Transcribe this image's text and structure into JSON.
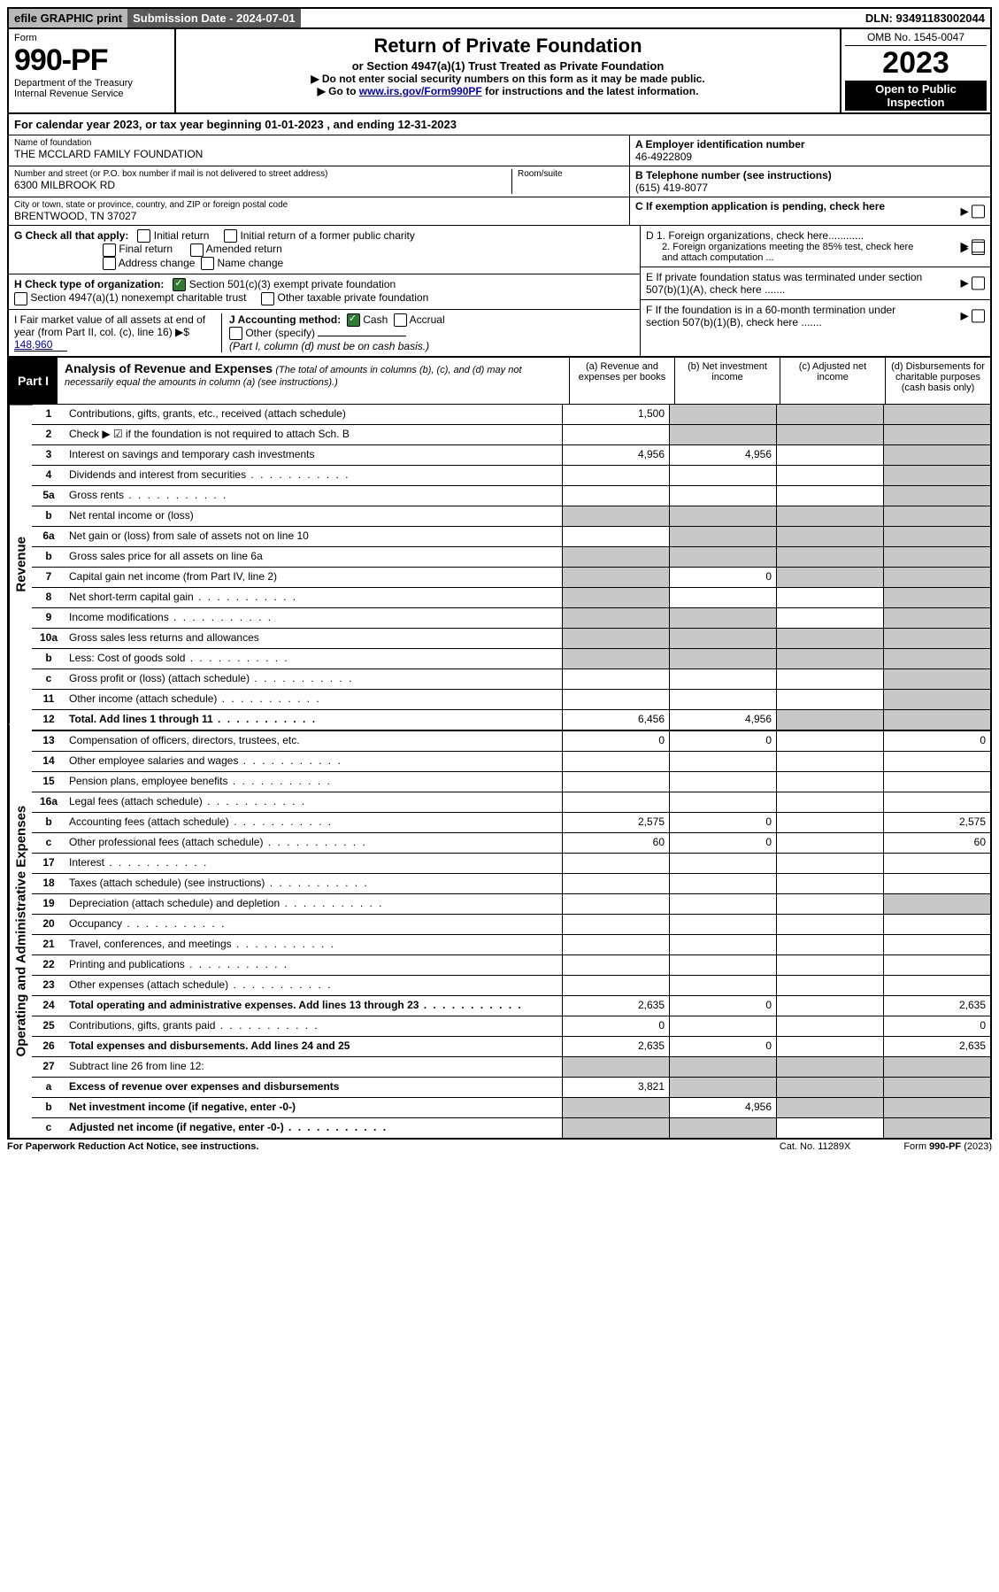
{
  "topbar": {
    "efile": "efile GRAPHIC print",
    "subdate": "Submission Date - 2024-07-01",
    "dln": "DLN: 93491183002044"
  },
  "header": {
    "form_word": "Form",
    "form_num": "990-PF",
    "dept": "Department of the Treasury",
    "irs": "Internal Revenue Service",
    "title": "Return of Private Foundation",
    "subtitle": "or Section 4947(a)(1) Trust Treated as Private Foundation",
    "instr1": "▶ Do not enter social security numbers on this form as it may be made public.",
    "instr2_pre": "▶ Go to ",
    "instr2_link": "www.irs.gov/Form990PF",
    "instr2_post": " for instructions and the latest information.",
    "omb": "OMB No. 1545-0047",
    "year": "2023",
    "open_public": "Open to Public Inspection"
  },
  "calendar": "For calendar year 2023, or tax year beginning 01-01-2023                              , and ending 12-31-2023",
  "identity": {
    "name_lbl": "Name of foundation",
    "name": "THE MCCLARD FAMILY FOUNDATION",
    "addr_lbl": "Number and street (or P.O. box number if mail is not delivered to street address)",
    "room_lbl": "Room/suite",
    "addr": "6300 MILBROOK RD",
    "city_lbl": "City or town, state or province, country, and ZIP or foreign postal code",
    "city": "BRENTWOOD, TN  37027",
    "ein_lbl": "A Employer identification number",
    "ein": "46-4922809",
    "phone_lbl": "B Telephone number (see instructions)",
    "phone": "(615) 419-8077",
    "c_lbl": "C If exemption application is pending, check here"
  },
  "checks": {
    "g_lbl": "G Check all that apply:",
    "initial": "Initial return",
    "initial_former": "Initial return of a former public charity",
    "final": "Final return",
    "amended": "Amended return",
    "addr_change": "Address change",
    "name_change": "Name change",
    "h_lbl": "H Check type of organization:",
    "h_501c3": "Section 501(c)(3) exempt private foundation",
    "h_4947": "Section 4947(a)(1) nonexempt charitable trust",
    "h_other_tax": "Other taxable private foundation",
    "i_lbl": "I Fair market value of all assets at end of year (from Part II, col. (c), line 16) ▶$",
    "i_val": "148,960",
    "j_lbl": "J Accounting method:",
    "j_cash": "Cash",
    "j_accrual": "Accrual",
    "j_other": "Other (specify)",
    "j_note": "(Part I, column (d) must be on cash basis.)",
    "d1": "D 1. Foreign organizations, check here............",
    "d2": "2. Foreign organizations meeting the 85% test, check here and attach computation ...",
    "e_lbl": "E  If private foundation status was terminated under section 507(b)(1)(A), check here .......",
    "f_lbl": "F  If the foundation is in a 60-month termination under section 507(b)(1)(B), check here ......."
  },
  "part1": {
    "label": "Part I",
    "title": "Analysis of Revenue and Expenses",
    "title_note": "(The total of amounts in columns (b), (c), and (d) may not necessarily equal the amounts in column (a) (see instructions).)",
    "col_a": "(a)   Revenue and expenses per books",
    "col_b": "(b)   Net investment income",
    "col_c": "(c)   Adjusted net income",
    "col_d": "(d)  Disbursements for charitable purposes (cash basis only)"
  },
  "vtabs": {
    "rev": "Revenue",
    "op": "Operating and Administrative Expenses"
  },
  "rows": {
    "r1": {
      "n": "1",
      "d": "Contributions, gifts, grants, etc., received (attach schedule)",
      "a": "1,500"
    },
    "r2": {
      "n": "2",
      "d": "Check ▶ ☑ if the foundation is not required to attach Sch. B"
    },
    "r3": {
      "n": "3",
      "d": "Interest on savings and temporary cash investments",
      "a": "4,956",
      "b": "4,956"
    },
    "r4": {
      "n": "4",
      "d": "Dividends and interest from securities"
    },
    "r5a": {
      "n": "5a",
      "d": "Gross rents"
    },
    "r5b": {
      "n": "b",
      "d": "Net rental income or (loss)"
    },
    "r6a": {
      "n": "6a",
      "d": "Net gain or (loss) from sale of assets not on line 10"
    },
    "r6b": {
      "n": "b",
      "d": "Gross sales price for all assets on line 6a"
    },
    "r7": {
      "n": "7",
      "d": "Capital gain net income (from Part IV, line 2)",
      "b": "0"
    },
    "r8": {
      "n": "8",
      "d": "Net short-term capital gain"
    },
    "r9": {
      "n": "9",
      "d": "Income modifications"
    },
    "r10a": {
      "n": "10a",
      "d": "Gross sales less returns and allowances"
    },
    "r10b": {
      "n": "b",
      "d": "Less: Cost of goods sold"
    },
    "r10c": {
      "n": "c",
      "d": "Gross profit or (loss) (attach schedule)"
    },
    "r11": {
      "n": "11",
      "d": "Other income (attach schedule)"
    },
    "r12": {
      "n": "12",
      "d": "Total. Add lines 1 through 11",
      "a": "6,456",
      "b": "4,956"
    },
    "r13": {
      "n": "13",
      "d": "Compensation of officers, directors, trustees, etc.",
      "a": "0",
      "b": "0",
      "dd": "0"
    },
    "r14": {
      "n": "14",
      "d": "Other employee salaries and wages"
    },
    "r15": {
      "n": "15",
      "d": "Pension plans, employee benefits"
    },
    "r16a": {
      "n": "16a",
      "d": "Legal fees (attach schedule)"
    },
    "r16b": {
      "n": "b",
      "d": "Accounting fees (attach schedule)",
      "a": "2,575",
      "b": "0",
      "dd": "2,575"
    },
    "r16c": {
      "n": "c",
      "d": "Other professional fees (attach schedule)",
      "a": "60",
      "b": "0",
      "dd": "60"
    },
    "r17": {
      "n": "17",
      "d": "Interest"
    },
    "r18": {
      "n": "18",
      "d": "Taxes (attach schedule) (see instructions)"
    },
    "r19": {
      "n": "19",
      "d": "Depreciation (attach schedule) and depletion"
    },
    "r20": {
      "n": "20",
      "d": "Occupancy"
    },
    "r21": {
      "n": "21",
      "d": "Travel, conferences, and meetings"
    },
    "r22": {
      "n": "22",
      "d": "Printing and publications"
    },
    "r23": {
      "n": "23",
      "d": "Other expenses (attach schedule)"
    },
    "r24": {
      "n": "24",
      "d": "Total operating and administrative expenses. Add lines 13 through 23",
      "a": "2,635",
      "b": "0",
      "dd": "2,635"
    },
    "r25": {
      "n": "25",
      "d": "Contributions, gifts, grants paid",
      "a": "0",
      "dd": "0"
    },
    "r26": {
      "n": "26",
      "d": "Total expenses and disbursements. Add lines 24 and 25",
      "a": "2,635",
      "b": "0",
      "dd": "2,635"
    },
    "r27": {
      "n": "27",
      "d": "Subtract line 26 from line 12:"
    },
    "r27a": {
      "n": "a",
      "d": "Excess of revenue over expenses and disbursements",
      "a": "3,821"
    },
    "r27b": {
      "n": "b",
      "d": "Net investment income (if negative, enter -0-)",
      "b": "4,956"
    },
    "r27c": {
      "n": "c",
      "d": "Adjusted net income (if negative, enter -0-)"
    }
  },
  "footer": {
    "left": "For Paperwork Reduction Act Notice, see instructions.",
    "mid": "Cat. No. 11289X",
    "right": "Form 990-PF (2023)"
  }
}
